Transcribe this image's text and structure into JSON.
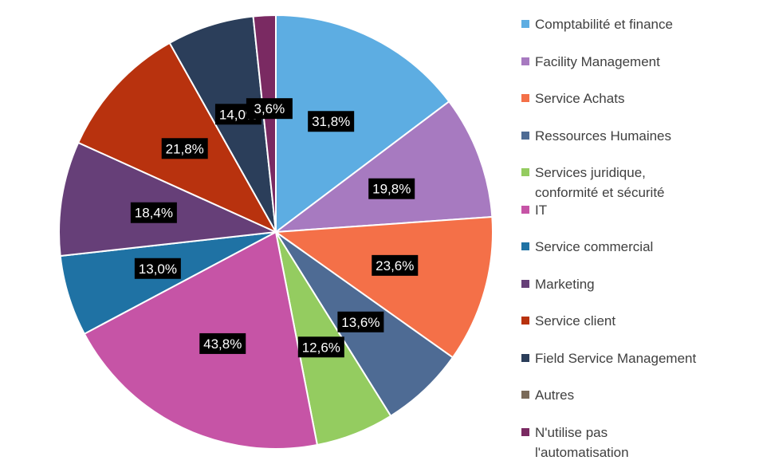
{
  "chart_data": {
    "type": "pie",
    "title": "",
    "slices": [
      {
        "name": "Comptabilité et finance",
        "value": 31.8,
        "label": "31,8%",
        "color": "#5DADE2"
      },
      {
        "name": "Facility Management",
        "value": 19.8,
        "label": "19,8%",
        "color": "#A77AC0"
      },
      {
        "name": "Service Achats",
        "value": 23.6,
        "label": "23,6%",
        "color": "#F47048"
      },
      {
        "name": "Ressources Humaines",
        "value": 13.6,
        "label": "13,6%",
        "color": "#4E6B94"
      },
      {
        "name": "Services juridique,\nconformité et sécurité",
        "value": 12.6,
        "label": "12,6%",
        "color": "#94CC60"
      },
      {
        "name": "IT",
        "value": 43.8,
        "label": "43,8%",
        "color": "#C654A6"
      },
      {
        "name": "Service commercial",
        "value": 13.0,
        "label": "13,0%",
        "color": "#1F72A4"
      },
      {
        "name": "Marketing",
        "value": 18.4,
        "label": "18,4%",
        "color": "#663F78"
      },
      {
        "name": "Service client",
        "value": 21.8,
        "label": "21,8%",
        "color": "#B8320E"
      },
      {
        "name": "Field Service Management",
        "value": 14.0,
        "label": "14,0%",
        "color": "#2B3E5A"
      },
      {
        "name": "Autres",
        "value": 0.0,
        "label": "",
        "color": "#7A6A58"
      },
      {
        "name": "N'utilise pas\nl'automatisation",
        "value": 3.6,
        "label": "3,6%",
        "color": "#7A2A62"
      }
    ],
    "legend_position": "right"
  }
}
